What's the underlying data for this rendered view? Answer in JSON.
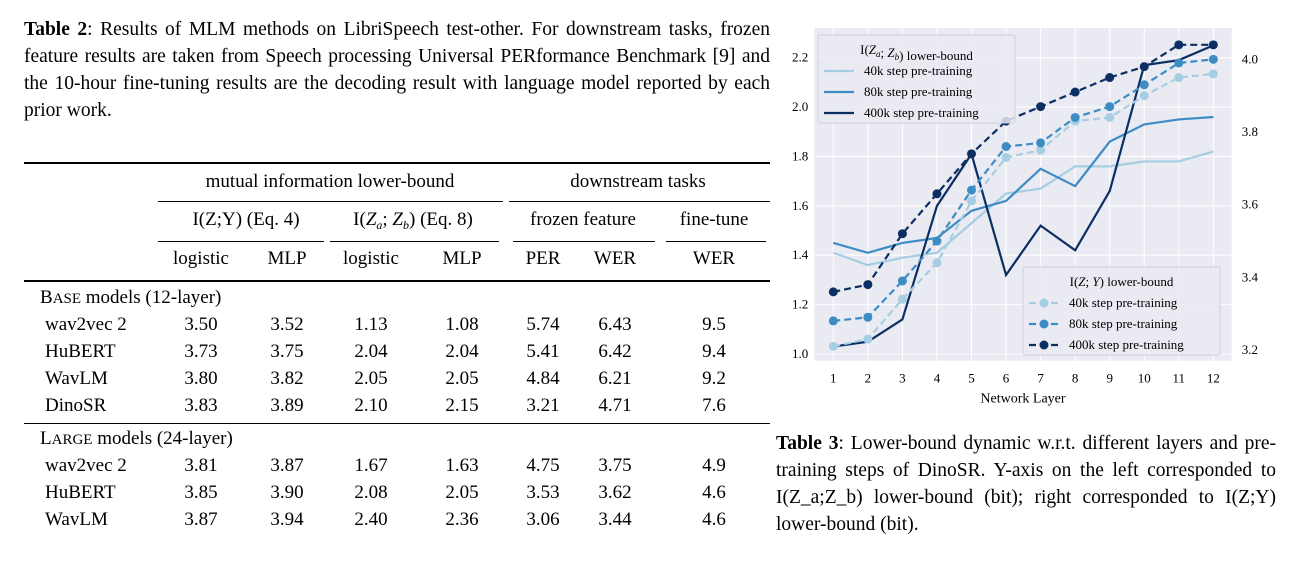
{
  "table2": {
    "caption_label": "Table 2",
    "caption_text": ": Results of MLM methods on LibriSpeech test-other. For downstream tasks, frozen feature results are taken from Speech processing Universal PERformance Benchmark [9] and the 10-hour fine-tuning results are the decoding result with language model reported by each prior work.",
    "group_headers": [
      "mutual information lower-bound",
      "downstream tasks"
    ],
    "sub_headers": [
      "I(Z;Y) (Eq. 4)",
      "I(Z_a;Z_b) (Eq. 8)",
      "frozen feature",
      "fine-tune"
    ],
    "columns": [
      "logistic",
      "MLP",
      "logistic",
      "MLP",
      "PER",
      "WER",
      "WER"
    ],
    "sections": [
      {
        "label_sc": "B",
        "label_small": "ASE",
        "label_rest": " models (12-layer)",
        "rows": [
          [
            "wav2vec 2",
            "3.50",
            "3.52",
            "1.13",
            "1.08",
            "5.74",
            "6.43",
            "9.5"
          ],
          [
            "HuBERT",
            "3.73",
            "3.75",
            "2.04",
            "2.04",
            "5.41",
            "6.42",
            "9.4"
          ],
          [
            "WavLM",
            "3.80",
            "3.82",
            "2.05",
            "2.05",
            "4.84",
            "6.21",
            "9.2"
          ],
          [
            "DinoSR",
            "3.83",
            "3.89",
            "2.10",
            "2.15",
            "3.21",
            "4.71",
            "7.6"
          ]
        ]
      },
      {
        "label_sc": "L",
        "label_small": "ARGE",
        "label_rest": " models (24-layer)",
        "rows": [
          [
            "wav2vec 2",
            "3.81",
            "3.87",
            "1.67",
            "1.63",
            "4.75",
            "3.75",
            "4.9"
          ],
          [
            "HuBERT",
            "3.85",
            "3.90",
            "2.08",
            "2.05",
            "3.53",
            "3.62",
            "4.6"
          ],
          [
            "WavLM",
            "3.87",
            "3.94",
            "2.40",
            "2.36",
            "3.06",
            "3.44",
            "4.6"
          ]
        ]
      }
    ]
  },
  "table3": {
    "caption_label": "Table 3",
    "caption_text_1": ": Lower-bound dynamic w.r.t. different layers and pre-training steps of DinoSR. Y-axis on the left corresponded to ",
    "caption_math_1": "I(Z_a;Z_b)",
    "caption_text_2": " lower-bound (bit); right corresponded to ",
    "caption_math_2": "I(Z;Y)",
    "caption_text_3": " lower-bound (bit)."
  },
  "chart_data": {
    "type": "line",
    "xlabel": "Network Layer",
    "x": [
      1,
      2,
      3,
      4,
      5,
      6,
      7,
      8,
      9,
      10,
      11,
      12
    ],
    "left_axis": {
      "ylim": [
        0.96,
        2.29
      ],
      "ticks": [
        "1.0",
        "1.2",
        "1.4",
        "1.6",
        "1.8",
        "2.0",
        "2.2"
      ]
    },
    "right_axis": {
      "ylim": [
        3.17,
        4.08
      ],
      "ticks": [
        "3.2",
        "3.4",
        "3.6",
        "3.8",
        "4.0"
      ]
    },
    "grid": true,
    "background": "#eaeaf2",
    "legends": [
      {
        "title": "I(Z_a;Z_b) lower-bound",
        "placement": "top-left"
      },
      {
        "title": "I(Z;Y) lower-bound",
        "placement": "bottom-right"
      }
    ],
    "series": [
      {
        "name": "40k step pre-training",
        "axis": "left",
        "style": "solid",
        "color": "#a6cee3",
        "values": [
          1.41,
          1.36,
          1.39,
          1.41,
          1.53,
          1.65,
          1.67,
          1.76,
          1.76,
          1.78,
          1.78,
          1.82
        ]
      },
      {
        "name": "80k step pre-training",
        "axis": "left",
        "style": "solid",
        "color": "#3d8cc4",
        "values": [
          1.45,
          1.41,
          1.45,
          1.47,
          1.58,
          1.62,
          1.75,
          1.68,
          1.86,
          1.93,
          1.95,
          1.96
        ]
      },
      {
        "name": "400k step pre-training",
        "axis": "left",
        "style": "solid",
        "color": "#0b2e63",
        "values": [
          1.03,
          1.05,
          1.14,
          1.6,
          1.81,
          1.32,
          1.52,
          1.42,
          1.66,
          2.17,
          2.19,
          2.25
        ]
      },
      {
        "name": "40k step pre-training",
        "axis": "right",
        "style": "dashed-marker",
        "color": "#a6cee3",
        "values": [
          3.21,
          3.23,
          3.34,
          3.44,
          3.61,
          3.73,
          3.75,
          3.83,
          3.84,
          3.9,
          3.95,
          3.96
        ]
      },
      {
        "name": "80k step pre-training",
        "axis": "right",
        "style": "dashed-marker",
        "color": "#3d8cc4",
        "values": [
          3.28,
          3.29,
          3.39,
          3.5,
          3.64,
          3.76,
          3.77,
          3.84,
          3.87,
          3.93,
          3.99,
          4.0
        ]
      },
      {
        "name": "400k step pre-training",
        "axis": "right",
        "style": "dashed-marker",
        "color": "#0b2e63",
        "values": [
          3.36,
          3.38,
          3.52,
          3.63,
          3.74,
          3.83,
          3.87,
          3.91,
          3.95,
          3.98,
          4.04,
          4.04
        ]
      }
    ]
  }
}
